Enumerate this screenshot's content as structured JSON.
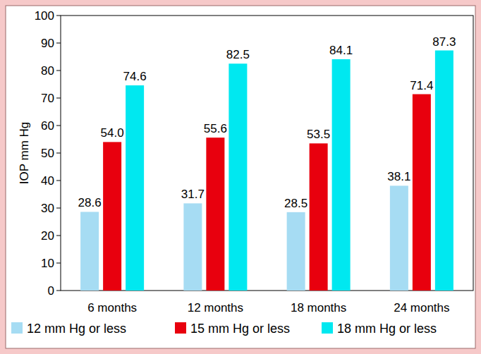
{
  "chart_data": {
    "type": "bar",
    "y_label": "IOP mm Hg",
    "categories": [
      "6 months",
      "12 months",
      "18 months",
      "24 months"
    ],
    "series": [
      {
        "name": "12 mm Hg or less",
        "color": "#a6dcf3",
        "values": [
          28.6,
          31.7,
          28.5,
          38.1
        ]
      },
      {
        "name": "15 mm Hg or less",
        "color": "#e8000e",
        "values": [
          54.0,
          55.6,
          53.5,
          71.4
        ],
        "value_labels": [
          "54.0",
          "55.6",
          "53.5",
          "71.4"
        ]
      },
      {
        "name": "18 mm Hg or less",
        "color": "#00e8f0",
        "values": [
          74.6,
          82.5,
          84.1,
          87.3
        ]
      }
    ],
    "ylim": [
      0,
      100
    ],
    "yticks": [
      0,
      10,
      20,
      30,
      40,
      50,
      60,
      70,
      80,
      90,
      100
    ],
    "grid": false,
    "legend": "bottom",
    "data_labels": true
  }
}
